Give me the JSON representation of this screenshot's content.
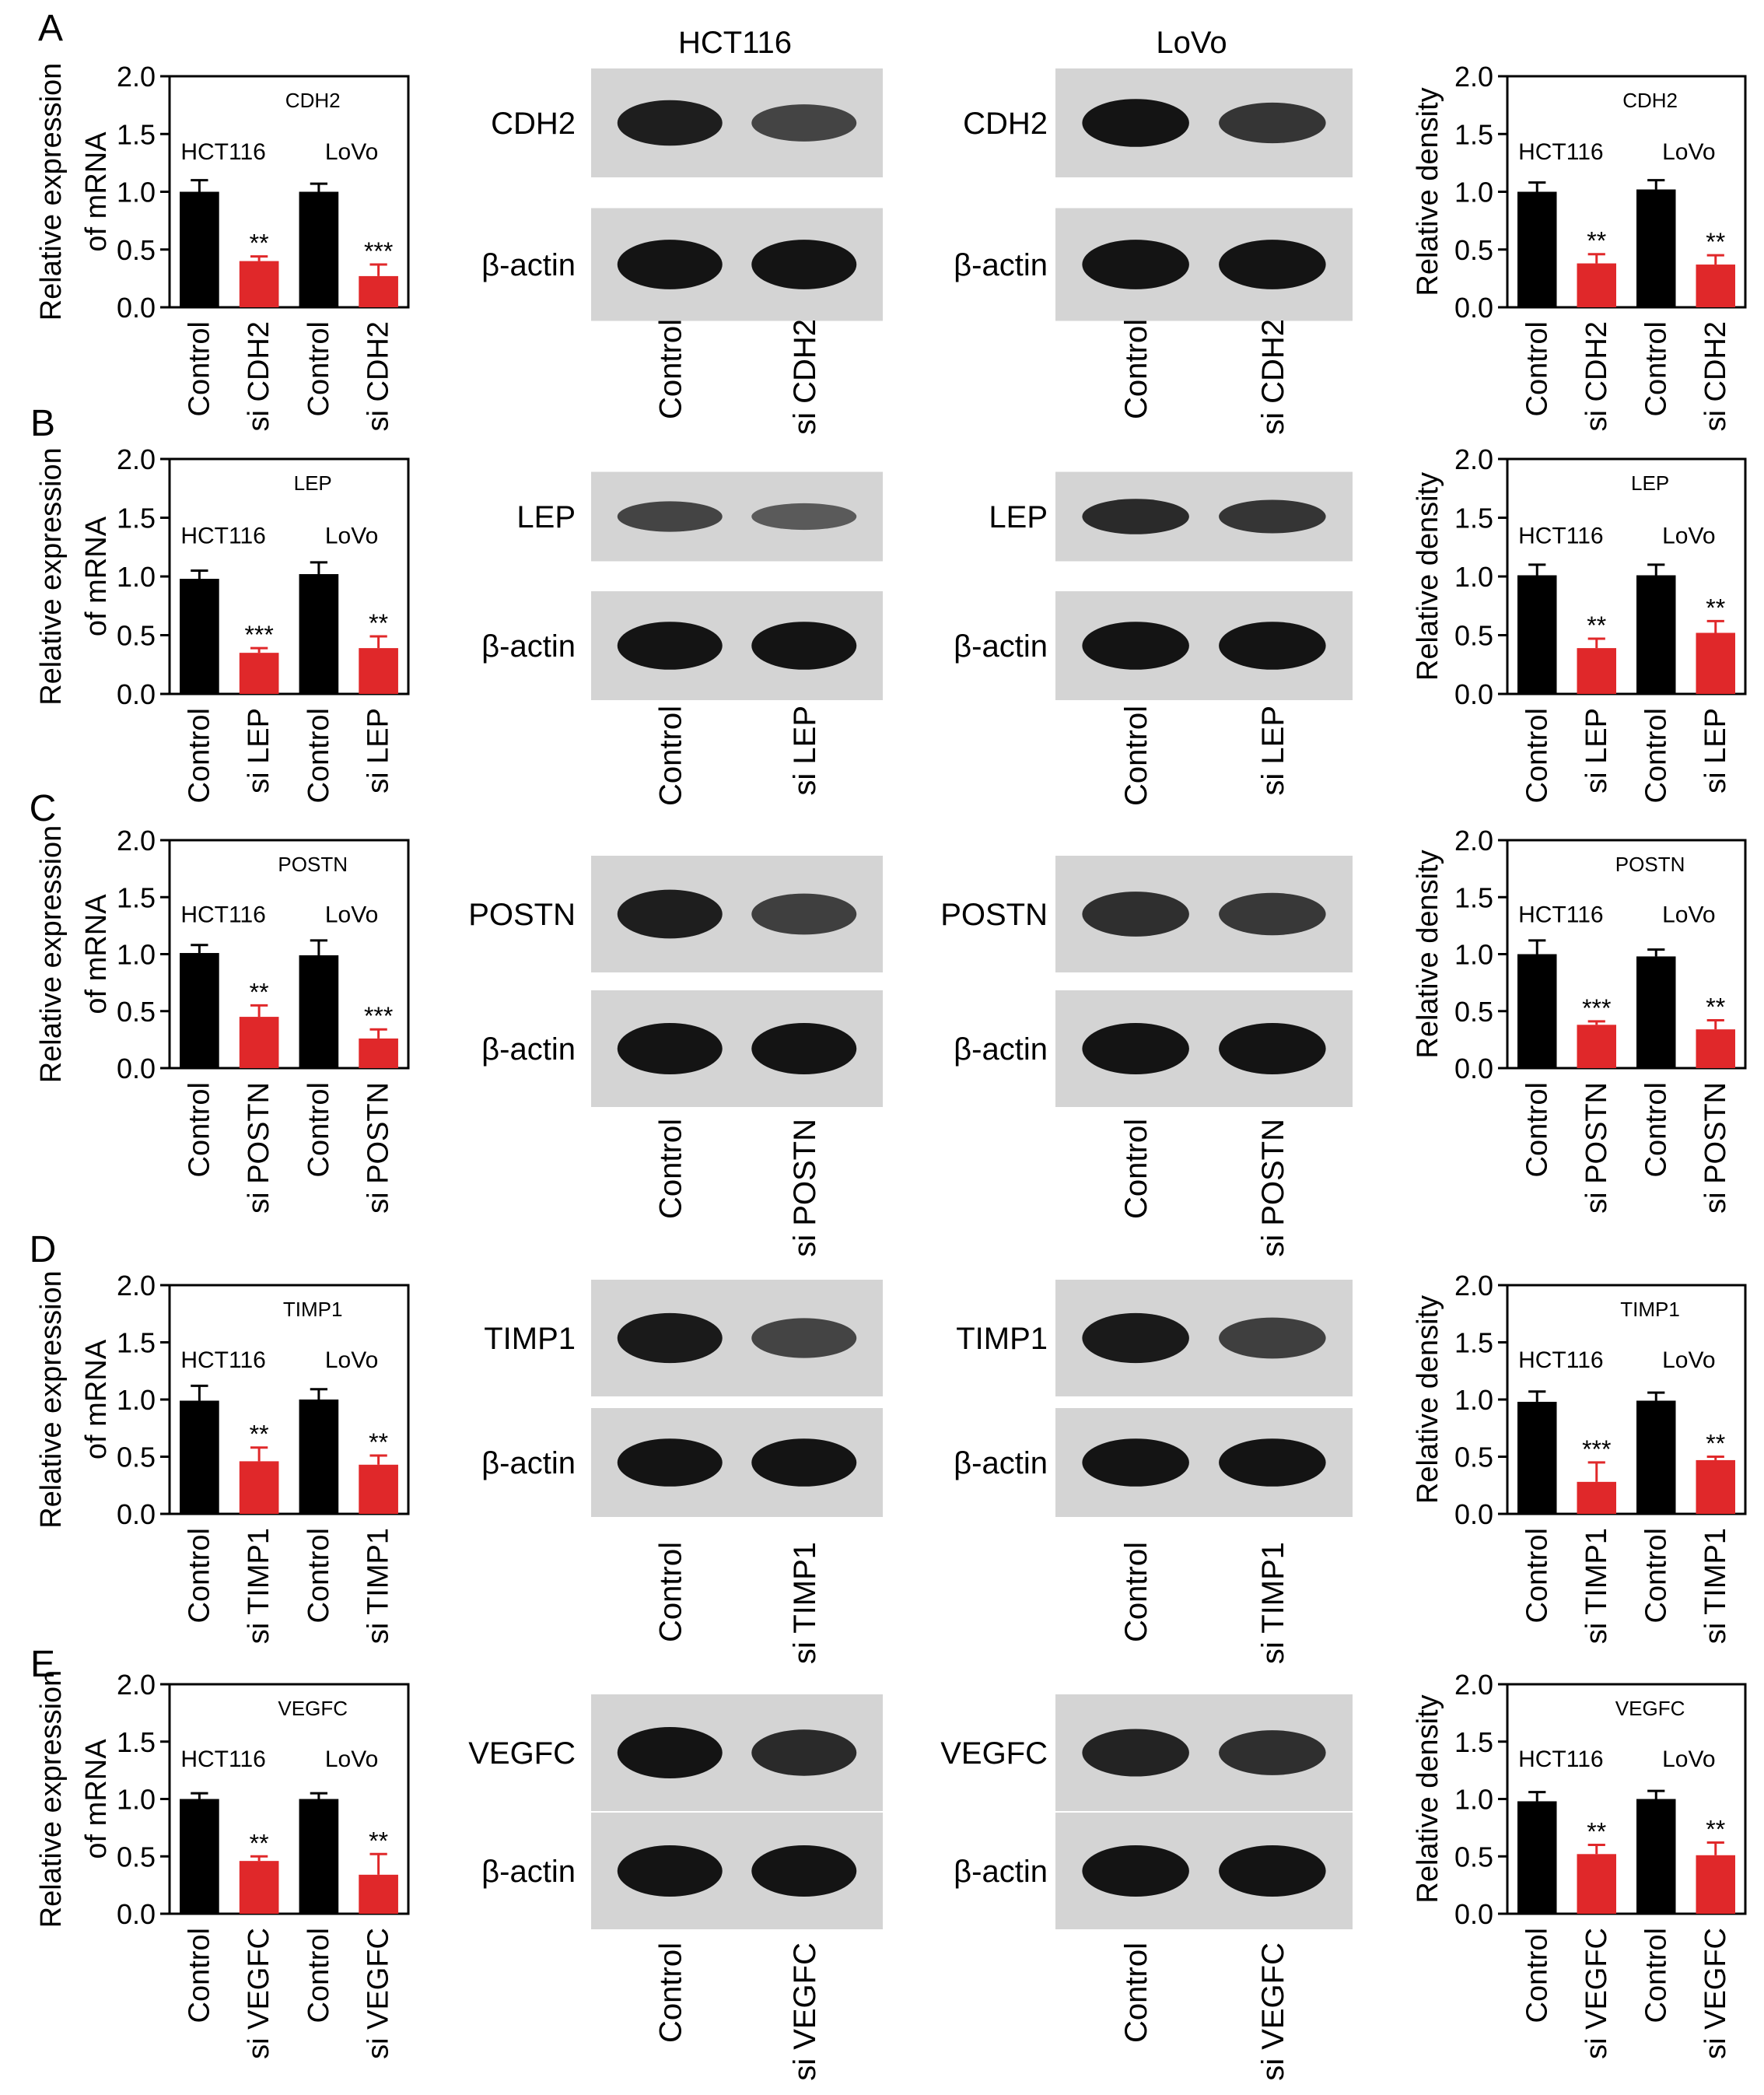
{
  "header": {
    "hct116": "HCT116",
    "lovo": "LoVo"
  },
  "bar_ylabel_mrna": [
    "Relative expression",
    "of mRNA"
  ],
  "bar_ylabel_density": "Relative density",
  "y_ticks": [
    "0.0",
    "0.5",
    "1.0",
    "1.5",
    "2.0"
  ],
  "group_labels": [
    "HCT116",
    "LoVo"
  ],
  "loading_control": "β-actin",
  "colors": {
    "control": "#000000",
    "si": "#e0282a",
    "blot_bg": "#d4d4d4",
    "band": "#141414"
  },
  "chart_data": [
    {
      "type": "bar",
      "panel": "A",
      "side": "mRNA",
      "title": "CDH2",
      "categories": [
        "Control",
        "si CDH2",
        "Control",
        "si CDH2"
      ],
      "values": [
        1.0,
        0.4,
        1.0,
        0.27
      ],
      "errors": [
        0.1,
        0.04,
        0.07,
        0.1
      ],
      "significance": [
        "",
        "**",
        "",
        "***"
      ],
      "ylim": [
        0,
        2
      ]
    },
    {
      "type": "bar",
      "panel": "A",
      "side": "density",
      "title": "CDH2",
      "categories": [
        "Control",
        "si CDH2",
        "Control",
        "si CDH2"
      ],
      "values": [
        1.0,
        0.38,
        1.02,
        0.37
      ],
      "errors": [
        0.08,
        0.08,
        0.08,
        0.08
      ],
      "significance": [
        "",
        "**",
        "",
        "**"
      ],
      "ylim": [
        0,
        2
      ]
    },
    {
      "type": "bar",
      "panel": "B",
      "side": "mRNA",
      "title": "LEP",
      "categories": [
        "Control",
        "si LEP",
        "Control",
        "si LEP"
      ],
      "values": [
        0.98,
        0.35,
        1.02,
        0.39
      ],
      "errors": [
        0.07,
        0.04,
        0.1,
        0.1
      ],
      "significance": [
        "",
        "***",
        "",
        "**"
      ],
      "ylim": [
        0,
        2
      ]
    },
    {
      "type": "bar",
      "panel": "B",
      "side": "density",
      "title": "LEP",
      "categories": [
        "Control",
        "si LEP",
        "Control",
        "si LEP"
      ],
      "values": [
        1.01,
        0.39,
        1.01,
        0.52
      ],
      "errors": [
        0.09,
        0.08,
        0.09,
        0.1
      ],
      "significance": [
        "",
        "**",
        "",
        "**"
      ],
      "ylim": [
        0,
        2
      ]
    },
    {
      "type": "bar",
      "panel": "C",
      "side": "mRNA",
      "title": "POSTN",
      "categories": [
        "Control",
        "si POSTN",
        "Control",
        "si POSTN"
      ],
      "values": [
        1.01,
        0.45,
        0.99,
        0.26
      ],
      "errors": [
        0.07,
        0.1,
        0.13,
        0.08
      ],
      "significance": [
        "",
        "**",
        "",
        "***"
      ],
      "ylim": [
        0,
        2
      ]
    },
    {
      "type": "bar",
      "panel": "C",
      "side": "density",
      "title": "POSTN",
      "categories": [
        "Control",
        "si POSTN",
        "Control",
        "si POSTN"
      ],
      "values": [
        1.0,
        0.38,
        0.98,
        0.34
      ],
      "errors": [
        0.12,
        0.03,
        0.06,
        0.08
      ],
      "significance": [
        "",
        "***",
        "",
        "**"
      ],
      "ylim": [
        0,
        2
      ]
    },
    {
      "type": "bar",
      "panel": "D",
      "side": "mRNA",
      "title": "TIMP1",
      "categories": [
        "Control",
        "si TIMP1",
        "Control",
        "si TIMP1"
      ],
      "values": [
        0.99,
        0.46,
        1.0,
        0.43
      ],
      "errors": [
        0.13,
        0.12,
        0.09,
        0.08
      ],
      "significance": [
        "",
        "**",
        "",
        "**"
      ],
      "ylim": [
        0,
        2
      ]
    },
    {
      "type": "bar",
      "panel": "D",
      "side": "density",
      "title": "TIMP1",
      "categories": [
        "Control",
        "si TIMP1",
        "Control",
        "si TIMP1"
      ],
      "values": [
        0.98,
        0.28,
        0.99,
        0.47
      ],
      "errors": [
        0.09,
        0.17,
        0.07,
        0.03
      ],
      "significance": [
        "",
        "***",
        "",
        "**"
      ],
      "ylim": [
        0,
        2
      ]
    },
    {
      "type": "bar",
      "panel": "E",
      "side": "mRNA",
      "title": "VEGFC",
      "categories": [
        "Control",
        "si VEGFC",
        "Control",
        "si VEGFC"
      ],
      "values": [
        1.0,
        0.46,
        1.0,
        0.34
      ],
      "errors": [
        0.05,
        0.04,
        0.05,
        0.18
      ],
      "significance": [
        "",
        "**",
        "",
        "**"
      ],
      "ylim": [
        0,
        2
      ]
    },
    {
      "type": "bar",
      "panel": "E",
      "side": "density",
      "title": "VEGFC",
      "categories": [
        "Control",
        "si VEGFC",
        "Control",
        "si VEGFC"
      ],
      "values": [
        0.98,
        0.52,
        1.0,
        0.51
      ],
      "errors": [
        0.08,
        0.08,
        0.07,
        0.11
      ],
      "significance": [
        "",
        "**",
        "",
        "**"
      ],
      "ylim": [
        0,
        2
      ]
    }
  ],
  "blots": [
    {
      "panel": "A",
      "protein": "CDH2",
      "lanes": [
        "Control",
        "si CDH2"
      ],
      "hct_band_intensity": [
        0.9,
        0.55
      ],
      "lovo_band_intensity": [
        1.0,
        0.7
      ]
    },
    {
      "panel": "B",
      "protein": "LEP",
      "lanes": [
        "Control",
        "si LEP"
      ],
      "hct_band_intensity": [
        0.55,
        0.35
      ],
      "lovo_band_intensity": [
        0.8,
        0.7
      ]
    },
    {
      "panel": "C",
      "protein": "POSTN",
      "lanes": [
        "Control",
        "si POSTN"
      ],
      "hct_band_intensity": [
        0.9,
        0.6
      ],
      "lovo_band_intensity": [
        0.75,
        0.65
      ]
    },
    {
      "panel": "D",
      "protein": "TIMP1",
      "lanes": [
        "Control",
        "si TIMP1"
      ],
      "hct_band_intensity": [
        0.95,
        0.55
      ],
      "lovo_band_intensity": [
        0.95,
        0.6
      ]
    },
    {
      "panel": "E",
      "protein": "VEGFC",
      "lanes": [
        "Control",
        "si VEGFC"
      ],
      "hct_band_intensity": [
        1.0,
        0.8
      ],
      "lovo_band_intensity": [
        0.85,
        0.75
      ]
    }
  ]
}
